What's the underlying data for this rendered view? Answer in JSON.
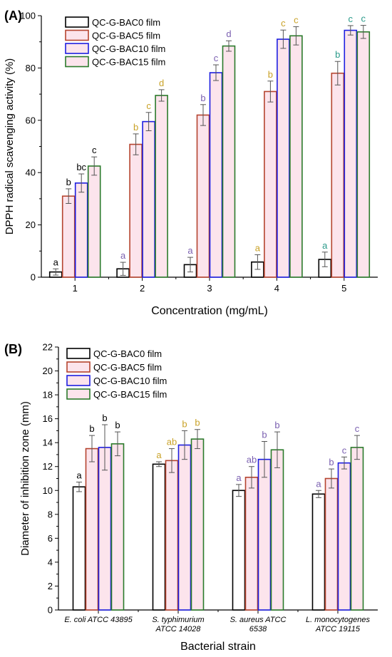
{
  "colors": {
    "series": [
      "#000000",
      "#b5442f",
      "#1d1ee0",
      "#2b7a2b"
    ],
    "fill": [
      "#ffffff",
      "#fce4ec",
      "#fce4ec",
      "#fce4ec"
    ],
    "letters": [
      "#000000",
      "#7a5fb0",
      "#c9a227",
      "#2a9a8a"
    ]
  },
  "legend_labels": [
    "QC-G-BAC0 film",
    "QC-G-BAC5 film",
    "QC-G-BAC10 film",
    "QC-G-BAC15 film"
  ],
  "chart_data": [
    {
      "type": "bar",
      "panel_label": "(A)",
      "categories": [
        "1",
        "2",
        "3",
        "4",
        "5"
      ],
      "xlabel": "Concentration (mg/mL)",
      "ylabel": "DPPH radical scavenging activity (%)",
      "ylim": [
        0,
        100
      ],
      "yticks": [
        0,
        20,
        40,
        60,
        80,
        100
      ],
      "legend_position": "top-left",
      "series": [
        {
          "name": "QC-G-BAC0 film",
          "values": [
            2,
            3.2,
            4.8,
            5.8,
            6.8
          ],
          "errors": [
            1.2,
            2.5,
            2.8,
            2.8,
            2.8
          ],
          "letters": [
            "a",
            "a",
            "a",
            "a",
            "a"
          ],
          "letter_colors": [
            0,
            1,
            1,
            2,
            3
          ]
        },
        {
          "name": "QC-G-BAC5 film",
          "values": [
            31,
            50.8,
            62,
            71,
            78
          ],
          "errors": [
            2.8,
            4,
            4,
            4,
            4.5
          ],
          "letters": [
            "b",
            "b",
            "b",
            "b",
            "b"
          ],
          "letter_colors": [
            0,
            2,
            1,
            2,
            3
          ]
        },
        {
          "name": "QC-G-BAC10 film",
          "values": [
            36,
            59.5,
            78.2,
            91,
            94.4
          ],
          "errors": [
            3.5,
            3.5,
            3,
            3.5,
            1.8
          ],
          "letters": [
            "bc",
            "c",
            "c",
            "c",
            "c"
          ],
          "letter_colors": [
            0,
            2,
            1,
            2,
            3
          ]
        },
        {
          "name": "QC-G-BAC15 film",
          "values": [
            42.5,
            69.5,
            88.4,
            92.3,
            93.8
          ],
          "errors": [
            3.5,
            2.2,
            2,
            3.5,
            2.5
          ],
          "letters": [
            "c",
            "d",
            "d",
            "c",
            "c"
          ],
          "letter_colors": [
            0,
            2,
            1,
            2,
            3
          ]
        }
      ]
    },
    {
      "type": "bar",
      "panel_label": "(B)",
      "categories": [
        [
          "E. coli ATCC 43895",
          ""
        ],
        [
          "S. typhimurium",
          "ATCC 14028"
        ],
        [
          "S. aureus ATCC",
          "6538"
        ],
        [
          "L. monocytogenes",
          "ATCC 19115"
        ]
      ],
      "xlabel": "Bacterial strain",
      "ylabel": "Diameter of inhibition zone (mm)",
      "ylim": [
        0,
        22
      ],
      "yticks": [
        0,
        2,
        4,
        6,
        8,
        10,
        12,
        14,
        16,
        18,
        20,
        22
      ],
      "legend_position": "top-left",
      "series": [
        {
          "name": "QC-G-BAC0 film",
          "values": [
            10.3,
            12.2,
            10,
            9.7
          ],
          "errors": [
            0.4,
            0.2,
            0.5,
            0.3
          ],
          "letters": [
            "a",
            "a",
            "a",
            "a"
          ],
          "letter_colors": [
            0,
            2,
            1,
            1
          ]
        },
        {
          "name": "QC-G-BAC5 film",
          "values": [
            13.5,
            12.5,
            11.1,
            11
          ],
          "errors": [
            1.1,
            1,
            0.9,
            0.8
          ],
          "letters": [
            "b",
            "ab",
            "ab",
            "b"
          ],
          "letter_colors": [
            0,
            2,
            1,
            1
          ]
        },
        {
          "name": "QC-G-BAC10 film",
          "values": [
            13.6,
            13.8,
            12.6,
            12.3
          ],
          "errors": [
            1.9,
            1.2,
            1.5,
            0.5
          ],
          "letters": [
            "b",
            "b",
            "b",
            "c"
          ],
          "letter_colors": [
            0,
            2,
            1,
            1
          ]
        },
        {
          "name": "QC-G-BAC15 film",
          "values": [
            13.9,
            14.3,
            13.4,
            13.6
          ],
          "errors": [
            1,
            0.8,
            1.5,
            1
          ],
          "letters": [
            "b",
            "b",
            "b",
            "c"
          ],
          "letter_colors": [
            0,
            2,
            1,
            1
          ]
        }
      ]
    }
  ]
}
